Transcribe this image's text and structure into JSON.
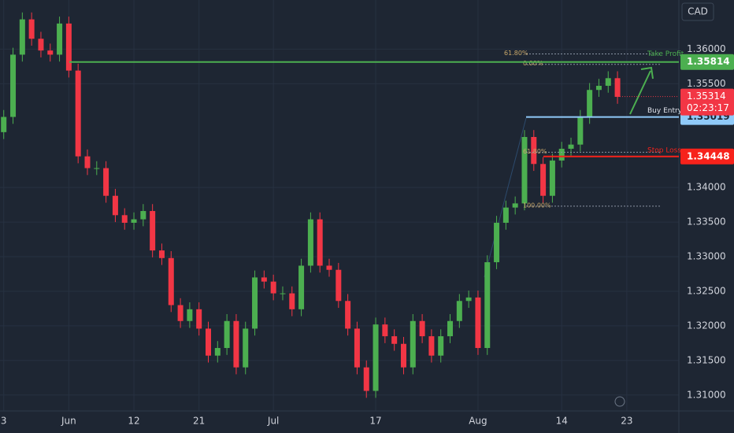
{
  "chart_data": {
    "type": "candlestick",
    "currency": "CAD",
    "x": [
      0,
      1,
      2,
      3,
      4,
      5,
      6,
      7,
      8,
      9,
      10,
      11,
      12,
      13,
      14,
      15,
      16,
      17,
      18,
      19,
      20,
      21,
      22,
      23,
      24,
      25,
      26,
      27,
      28,
      29,
      30,
      31,
      32,
      33,
      34,
      35,
      36,
      37,
      38,
      39,
      40,
      41,
      42,
      43,
      44,
      45,
      46,
      47,
      48,
      49,
      50,
      51,
      52,
      53,
      54,
      55,
      56,
      57,
      58,
      59,
      60,
      61,
      62,
      63,
      64,
      65,
      66
    ],
    "open": [
      1.348,
      1.3502,
      1.3592,
      1.3643,
      1.3615,
      1.3598,
      1.3592,
      1.3637,
      1.3569,
      1.3445,
      1.3428,
      1.3428,
      1.3388,
      1.336,
      1.3349,
      1.3354,
      1.3366,
      1.3309,
      1.3298,
      1.323,
      1.3207,
      1.3224,
      1.3196,
      1.3157,
      1.3168,
      1.3207,
      1.314,
      1.3196,
      1.327,
      1.3264,
      1.3247,
      1.3247,
      1.3224,
      1.3287,
      1.3354,
      1.3287,
      1.3281,
      1.3236,
      1.3196,
      1.314,
      1.3106,
      1.3202,
      1.3185,
      1.3174,
      1.314,
      1.3207,
      1.3185,
      1.3157,
      1.3185,
      1.3207,
      1.3236,
      1.3241,
      1.3168,
      1.3292,
      1.3349,
      1.3371,
      1.3377,
      1.3473,
      1.3434,
      1.3388,
      1.3439,
      1.3456,
      1.3462,
      1.3502,
      1.3541,
      1.3547,
      1.3558
    ],
    "high": [
      1.3512,
      1.3602,
      1.3653,
      1.3653,
      1.3625,
      1.3608,
      1.3647,
      1.3647,
      1.3579,
      1.3455,
      1.3438,
      1.3438,
      1.3398,
      1.337,
      1.3364,
      1.3376,
      1.3376,
      1.3319,
      1.3308,
      1.324,
      1.3234,
      1.3234,
      1.3206,
      1.3178,
      1.3217,
      1.3217,
      1.3206,
      1.328,
      1.328,
      1.3274,
      1.3257,
      1.3257,
      1.3297,
      1.3364,
      1.3364,
      1.3297,
      1.3291,
      1.3246,
      1.3206,
      1.315,
      1.3212,
      1.3212,
      1.3195,
      1.3184,
      1.3217,
      1.3217,
      1.3195,
      1.3195,
      1.3217,
      1.3246,
      1.3251,
      1.3251,
      1.3302,
      1.3359,
      1.3381,
      1.3387,
      1.3483,
      1.3483,
      1.3444,
      1.3449,
      1.3466,
      1.3472,
      1.3512,
      1.3551,
      1.3557,
      1.3568,
      1.3568
    ],
    "low": [
      1.347,
      1.3492,
      1.3582,
      1.3605,
      1.3588,
      1.3582,
      1.3582,
      1.3559,
      1.3435,
      1.3418,
      1.3418,
      1.3378,
      1.335,
      1.3339,
      1.3339,
      1.3344,
      1.3299,
      1.3288,
      1.322,
      1.3197,
      1.3197,
      1.3186,
      1.3147,
      1.3147,
      1.3158,
      1.313,
      1.313,
      1.3186,
      1.3254,
      1.3237,
      1.3237,
      1.3214,
      1.3214,
      1.3277,
      1.3277,
      1.3271,
      1.3226,
      1.3186,
      1.313,
      1.3096,
      1.3096,
      1.3175,
      1.3164,
      1.313,
      1.313,
      1.3175,
      1.3147,
      1.3147,
      1.3175,
      1.3197,
      1.3226,
      1.3158,
      1.3158,
      1.3282,
      1.3339,
      1.3361,
      1.3367,
      1.3424,
      1.3378,
      1.3378,
      1.3429,
      1.3446,
      1.3452,
      1.3492,
      1.3531,
      1.3537,
      1.3521
    ],
    "close": [
      1.3502,
      1.3592,
      1.3643,
      1.3615,
      1.3598,
      1.3592,
      1.3637,
      1.3569,
      1.3445,
      1.3428,
      1.3428,
      1.3388,
      1.336,
      1.3349,
      1.3354,
      1.3366,
      1.3309,
      1.3298,
      1.323,
      1.3207,
      1.3224,
      1.3196,
      1.3157,
      1.3168,
      1.3207,
      1.314,
      1.3196,
      1.327,
      1.3264,
      1.3247,
      1.3247,
      1.3224,
      1.3287,
      1.3354,
      1.3287,
      1.3281,
      1.3236,
      1.3196,
      1.314,
      1.3106,
      1.3202,
      1.3185,
      1.3174,
      1.314,
      1.3207,
      1.3185,
      1.3157,
      1.3185,
      1.3207,
      1.3236,
      1.3241,
      1.3168,
      1.3292,
      1.3349,
      1.3371,
      1.3377,
      1.3473,
      1.3434,
      1.3388,
      1.3439,
      1.3456,
      1.3462,
      1.3502,
      1.3541,
      1.3547,
      1.3558,
      1.3531
    ],
    "up_color": "#4caf50",
    "down_color": "#f23645",
    "xlim": [
      -0.4,
      72.6
    ],
    "xticks": [
      {
        "value": 0,
        "label": "3"
      },
      {
        "value": 7,
        "label": "Jun"
      },
      {
        "value": 14,
        "label": "12"
      },
      {
        "value": 21,
        "label": "21"
      },
      {
        "value": 29,
        "label": "Jul"
      },
      {
        "value": 40,
        "label": "17"
      },
      {
        "value": 51,
        "label": "Aug"
      },
      {
        "value": 60,
        "label": "14"
      },
      {
        "value": 67,
        "label": "23"
      }
    ],
    "ylim": [
      1.3077,
      1.3671
    ],
    "yticks": [
      {
        "value": 1.36,
        "label": "1.36000"
      },
      {
        "value": 1.355,
        "label": "1.35500"
      },
      {
        "value": 1.34,
        "label": "1.34000"
      },
      {
        "value": 1.335,
        "label": "1.33500"
      },
      {
        "value": 1.33,
        "label": "1.33000"
      },
      {
        "value": 1.325,
        "label": "1.32500"
      },
      {
        "value": 1.32,
        "label": "1.32000"
      },
      {
        "value": 1.315,
        "label": "1.31500"
      },
      {
        "value": 1.31,
        "label": "1.31000"
      }
    ],
    "grid": true,
    "levels": [
      {
        "name": "Take Profit",
        "value": 1.35814,
        "color": "#4caf50"
      },
      {
        "name": "Buy Entry",
        "value": 1.35019,
        "color": "#90caf9"
      },
      {
        "name": "Stop Loss",
        "value": 1.34448,
        "color": "#f7221b"
      }
    ],
    "fib": [
      {
        "label": "61.80%",
        "value": 1.3593
      },
      {
        "label": "0.00%",
        "value": 1.3578
      },
      {
        "label": "61.80%",
        "value": 1.3451
      },
      {
        "label": "100.00%",
        "value": 1.3373
      }
    ],
    "last_price": {
      "value": 1.35314,
      "countdown": "02:23:17",
      "color": "#f23645"
    }
  }
}
